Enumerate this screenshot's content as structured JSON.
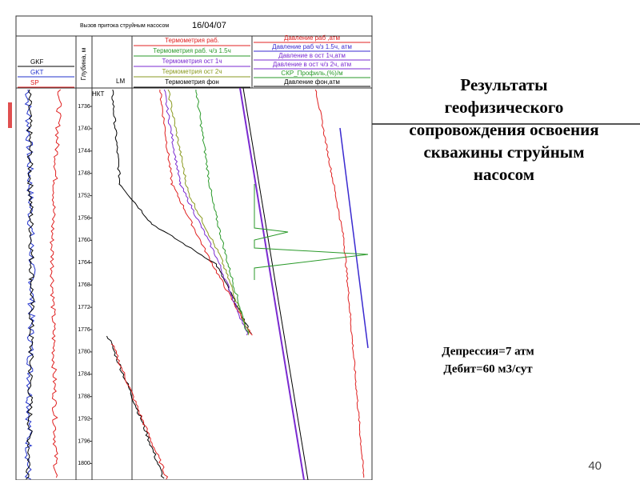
{
  "header": {
    "caption": "Вызов притока струйным насосом",
    "date": "16/04/07"
  },
  "left_legend": [
    {
      "name": "GKF",
      "color": "#000000"
    },
    {
      "name": "GKT",
      "color": "#2233cc"
    },
    {
      "name": "SP",
      "color": "#e02020"
    }
  ],
  "depth_axis_label": "Глубина, м",
  "track_labels": {
    "tubing": "НКТ",
    "lm": "LM"
  },
  "temperature_legend": [
    {
      "name": "Термометрия раб.",
      "color": "#e02020"
    },
    {
      "name": "Термометрия раб. ч/з 1.5ч",
      "color": "#2a9a2a"
    },
    {
      "name": "Термометрия ост 1ч",
      "color": "#7a2ad0"
    },
    {
      "name": "Термометрия ост 2ч",
      "color": "#8a9a20"
    },
    {
      "name": "Термометрия фон",
      "color": "#000000"
    }
  ],
  "pressure_legend": [
    {
      "name": "Давление раб ,атм",
      "color": "#e02020"
    },
    {
      "name": "Давление раб ч/з 1.5ч, атм",
      "color": "#3a2ad0"
    },
    {
      "name": "Давление в ост 1ч,атм",
      "color": "#7a2ad0"
    },
    {
      "name": "Давление в ост ч/з 2ч, атм",
      "color": "#7a2ad0"
    },
    {
      "name": "СКР_Профиль,(%)/м",
      "color": "#2a9a2a"
    },
    {
      "name": "Давление фон,атм",
      "color": "#000000"
    }
  ],
  "depths": [
    "1736",
    "1740",
    "1744",
    "1748",
    "1752",
    "1756",
    "1760",
    "1764",
    "1768",
    "1772",
    "1776",
    "1780",
    "1784",
    "1788",
    "1792",
    "1796",
    "1800"
  ],
  "title_lines": [
    "Результаты",
    "геофизического",
    "сопровождения освоения",
    "скважины струйным",
    "насосом"
  ],
  "notes": [
    "Депрессия=7 атм",
    "Дебит=60 м3/сут"
  ],
  "page_number": "40"
}
